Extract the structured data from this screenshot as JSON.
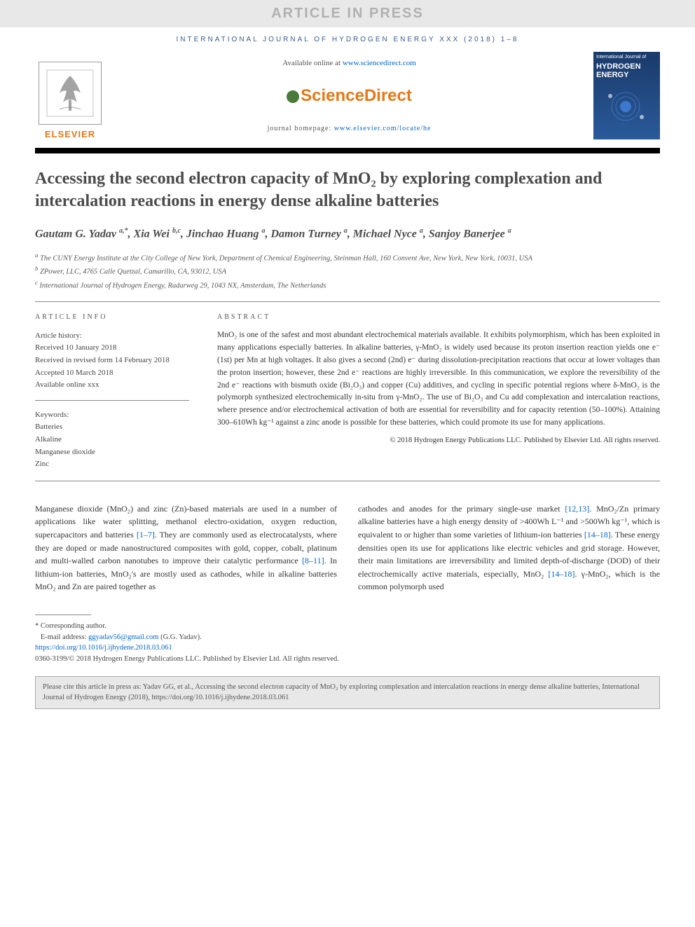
{
  "banner": "ARTICLE IN PRESS",
  "journalRef": "INTERNATIONAL JOURNAL OF HYDROGEN ENERGY XXX (2018) 1–8",
  "header": {
    "availablePrefix": "Available online at ",
    "availableLink": "www.sciencedirect.com",
    "brand": "ScienceDirect",
    "homepagePrefix": "journal homepage: ",
    "homepageLink": "www.elsevier.com/locate/he",
    "elsevier": "ELSEVIER",
    "cover": {
      "small": "International Journal of",
      "large": "HYDROGEN ENERGY"
    }
  },
  "title": "Accessing the second electron capacity of MnO₂ by exploring complexation and intercalation reactions in energy dense alkaline batteries",
  "authorsHtml": "Gautam G. Yadav <sup>a,*</sup>, Xia Wei <sup>b,c</sup>, Jinchao Huang <sup>a</sup>, Damon Turney <sup>a</sup>, Michael Nyce <sup>a</sup>, Sanjoy Banerjee <sup>a</sup>",
  "affiliations": {
    "a": "The CUNY Energy Institute at the City College of New York, Department of Chemical Engineering, Steinman Hall, 160 Convent Ave, New York, New York, 10031, USA",
    "b": "ZPower, LLC, 4765 Calle Quetzal, Camarillo, CA, 93012, USA",
    "c": "International Journal of Hydrogen Energy, Radarweg 29, 1043 NX, Amsterdam, The Netherlands"
  },
  "articleInfo": {
    "head": "ARTICLE INFO",
    "historyLabel": "Article history:",
    "received": "Received 10 January 2018",
    "revised": "Received in revised form 14 February 2018",
    "accepted": "Accepted 10 March 2018",
    "online": "Available online xxx",
    "keywordsLabel": "Keywords:",
    "keywords": [
      "Batteries",
      "Alkaline",
      "Manganese dioxide",
      "Zinc"
    ]
  },
  "abstract": {
    "head": "ABSTRACT",
    "text": "MnO₂ is one of the safest and most abundant electrochemical materials available. It exhibits polymorphism, which has been exploited in many applications especially batteries. In alkaline batteries, γ-MnO₂ is widely used because its proton insertion reaction yields one e⁻ (1st) per Mn at high voltages. It also gives a second (2nd) e⁻ during dissolution-precipitation reactions that occur at lower voltages than the proton insertion; however, these 2nd e⁻ reactions are highly irreversible. In this communication, we explore the reversibility of the 2nd e⁻ reactions with bismuth oxide (Bi₂O₃) and copper (Cu) additives, and cycling in specific potential regions where δ-MnO₂ is the polymorph synthesized electrochemically in-situ from γ-MnO₂. The use of Bi₂O₃ and Cu add complexation and intercalation reactions, where presence and/or electrochemical activation of both are essential for reversibility and for capacity retention (50–100%). Attaining 300–610Wh kg⁻¹ against a zinc anode is possible for these batteries, which could promote its use for many applications.",
    "copyright": "© 2018 Hydrogen Energy Publications LLC. Published by Elsevier Ltd. All rights reserved."
  },
  "body": {
    "col1": "Manganese dioxide (MnO₂) and zinc (Zn)-based materials are used in a number of applications like water splitting, methanol electro-oxidation, oxygen reduction, supercapacitors and batteries [1–7]. They are commonly used as electrocatalysts, where they are doped or made nanostructured composites with gold, copper, cobalt, platinum and multi-walled carbon nanotubes to improve their catalytic performance [8–11]. In lithium-ion batteries, MnO₂'s are mostly used as cathodes, while in alkaline batteries MnO₂ and Zn are paired together as",
    "col2": "cathodes and anodes for the primary single-use market [12,13]. MnO₂/Zn primary alkaline batteries have a high energy density of >400Wh L⁻¹ and >500Wh kg⁻¹, which is equivalent to or higher than some varieties of lithium-ion batteries [14–18]. These energy densities open its use for applications like electric vehicles and grid storage. However, their main limitations are irreversibility and limited depth-of-discharge (DOD) of their electrochemically active materials, especially, MnO₂ [14–18]. γ-MnO₂, which is the common polymorph used",
    "refs": {
      "r1": "[1–7]",
      "r2": "[8–11]",
      "r3": "[12,13]",
      "r4": "[14–18]",
      "r5": "[14–18]"
    }
  },
  "footnotes": {
    "corr": "* Corresponding author.",
    "emailLabel": "E-mail address: ",
    "email": "ggyadav56@gmail.com",
    "emailAuthor": "(G.G. Yadav).",
    "doi": "https://doi.org/10.1016/j.ijhydene.2018.03.061",
    "issn": "0360-3199/© 2018 Hydrogen Energy Publications LLC. Published by Elsevier Ltd. All rights reserved."
  },
  "citeBox": "Please cite this article in press as: Yadav GG, et al., Accessing the second electron capacity of MnO₂ by exploring complexation and intercalation reactions in energy dense alkaline batteries, International Journal of Hydrogen Energy (2018), https://doi.org/10.1016/j.ijhydene.2018.03.061",
  "colors": {
    "orange": "#e67817",
    "linkBlue": "#0066cc",
    "bannerBg": "#e8e8e8",
    "bannerText": "#b0b0b0",
    "ruleBlack": "#000000",
    "coverBg": "#1a3a6a"
  }
}
